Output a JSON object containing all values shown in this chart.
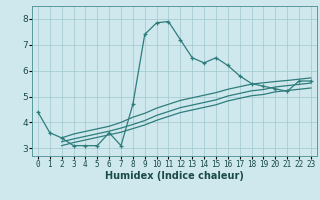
{
  "xlabel": "Humidex (Indice chaleur)",
  "ylabel": "",
  "xlim": [
    -0.5,
    23.5
  ],
  "ylim": [
    2.7,
    8.5
  ],
  "yticks": [
    3,
    4,
    5,
    6,
    7,
    8
  ],
  "xticks": [
    0,
    1,
    2,
    3,
    4,
    5,
    6,
    7,
    8,
    9,
    10,
    11,
    12,
    13,
    14,
    15,
    16,
    17,
    18,
    19,
    20,
    21,
    22,
    23
  ],
  "bg_color": "#cfe8ed",
  "grid_color": "#a0c8d0",
  "line_color": "#2e7d7d",
  "line1": {
    "x": [
      0,
      1,
      2,
      3,
      4,
      5,
      6,
      7,
      8,
      9,
      10,
      11,
      12,
      13,
      14,
      15,
      16,
      17,
      18,
      19,
      20,
      21,
      22,
      23
    ],
    "y": [
      4.4,
      3.6,
      3.4,
      3.1,
      3.1,
      3.1,
      3.6,
      3.1,
      4.7,
      7.4,
      7.85,
      7.9,
      7.2,
      6.5,
      6.3,
      6.5,
      6.2,
      5.8,
      5.5,
      5.4,
      5.3,
      5.2,
      5.6,
      5.6
    ]
  },
  "line2": {
    "x": [
      2,
      3,
      4,
      5,
      6,
      7,
      8,
      9,
      10,
      11,
      12,
      13,
      14,
      15,
      16,
      17,
      18,
      19,
      20,
      21,
      22,
      23
    ],
    "y": [
      3.4,
      3.55,
      3.65,
      3.75,
      3.85,
      4.0,
      4.2,
      4.35,
      4.55,
      4.7,
      4.85,
      4.95,
      5.05,
      5.15,
      5.28,
      5.38,
      5.48,
      5.53,
      5.58,
      5.62,
      5.67,
      5.72
    ]
  },
  "line3": {
    "x": [
      2,
      3,
      4,
      5,
      6,
      7,
      8,
      9,
      10,
      11,
      12,
      13,
      14,
      15,
      16,
      17,
      18,
      19,
      20,
      21,
      22,
      23
    ],
    "y": [
      3.25,
      3.36,
      3.46,
      3.56,
      3.66,
      3.78,
      3.92,
      4.07,
      4.27,
      4.42,
      4.57,
      4.67,
      4.77,
      4.87,
      5.02,
      5.12,
      5.22,
      5.27,
      5.37,
      5.42,
      5.47,
      5.52
    ]
  },
  "line4": {
    "x": [
      2,
      3,
      4,
      5,
      6,
      7,
      8,
      9,
      10,
      11,
      12,
      13,
      14,
      15,
      16,
      17,
      18,
      19,
      20,
      21,
      22,
      23
    ],
    "y": [
      3.1,
      3.22,
      3.32,
      3.42,
      3.52,
      3.62,
      3.76,
      3.9,
      4.08,
      4.23,
      4.38,
      4.48,
      4.58,
      4.68,
      4.83,
      4.93,
      5.03,
      5.08,
      5.18,
      5.23,
      5.28,
      5.33
    ]
  }
}
